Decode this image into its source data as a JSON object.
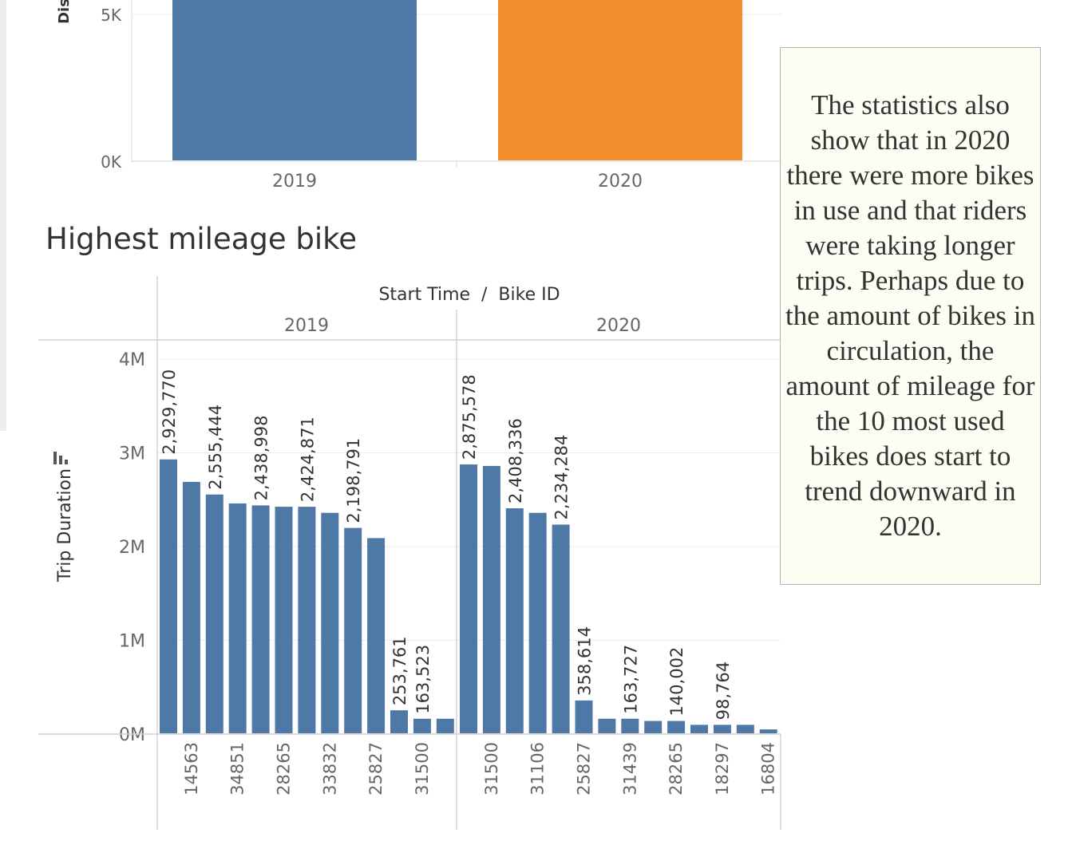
{
  "note": {
    "text": "The statistics also show that in 2020 there were more bikes in use and that riders were taking longer trips. Perhaps due to the amount of bikes in circulation, the amount of mileage for the 10 most used bikes does start to trend downward in 2020."
  },
  "top_chart": {
    "axis_label_fragment": "Dis",
    "ticks": [
      "0K",
      "5K"
    ]
  },
  "bottom_chart": {
    "title": "Highest mileage bike",
    "header_title": "Start Time  /  Bike ID",
    "ylabel": "Trip Duration",
    "ticks": [
      "0M",
      "1M",
      "2M",
      "3M",
      "4M"
    ]
  },
  "colors": {
    "blue": "#4e79a7",
    "orange": "#f28e2b",
    "note_bg": "#fdfdf3"
  },
  "chart_data": [
    {
      "type": "bar",
      "ylabel": "Dis",
      "ylim": [
        0,
        5000
      ],
      "categories": [
        "2019",
        "2020"
      ],
      "values": [
        5000,
        5000
      ],
      "colors": [
        "#4e79a7",
        "#f28e2b"
      ],
      "note": "bars extend above visible area"
    },
    {
      "type": "bar",
      "title": "Highest mileage bike",
      "xlabel": "Start Time / Bike ID",
      "ylabel": "Trip Duration",
      "ylim": [
        0,
        4200000
      ],
      "yticks": [
        "0M",
        "1M",
        "2M",
        "3M",
        "4M"
      ],
      "panels": [
        {
          "label": "2019",
          "bike_ids": [
            "",
            "14563",
            "",
            "34851",
            "",
            "28265",
            "",
            "33832",
            "",
            "25827",
            "",
            "31500",
            ""
          ],
          "values": [
            2929770,
            2690000,
            2555444,
            2460000,
            2438998,
            2425000,
            2424871,
            2360000,
            2198791,
            2090000,
            253761,
            163523,
            163523
          ],
          "labels": [
            "2,929,770",
            "",
            "2,555,444",
            "",
            "2,438,998",
            "",
            "2,424,871",
            "",
            "2,198,791",
            "",
            "253,761",
            "163,523",
            ""
          ]
        },
        {
          "label": "2020",
          "bike_ids": [
            "",
            "31500",
            "",
            "31106",
            "",
            "25827",
            "",
            "31439",
            "",
            "28265",
            "",
            "18297",
            "",
            "16804"
          ],
          "values": [
            2875578,
            2860000,
            2408336,
            2360000,
            2234284,
            358614,
            163727,
            163727,
            140002,
            140002,
            98764,
            98764,
            98764,
            50000
          ],
          "labels": [
            "2,875,578",
            "",
            "2,408,336",
            "",
            "2,234,284",
            "358,614",
            "",
            "163,727",
            "",
            "140,002",
            "",
            "98,764",
            "",
            ""
          ]
        }
      ]
    }
  ]
}
